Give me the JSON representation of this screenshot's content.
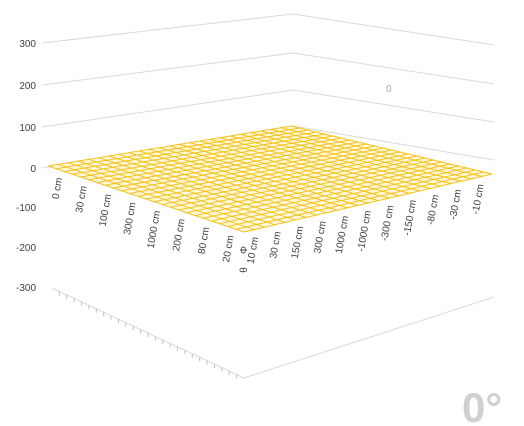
{
  "chart_data": {
    "type": "surface",
    "title": "",
    "zlim": [
      -300,
      300
    ],
    "z_ticks": [
      "300",
      "200",
      "100",
      "0",
      "-100",
      "-200",
      "-300"
    ],
    "x_categories": [
      "0 cm",
      "30 cm",
      "100 cm",
      "300 cm",
      "1000 cm",
      "200 cm",
      "80 cm",
      "20 cm"
    ],
    "y_categories": [
      "10 cm",
      "30 cm",
      "150 cm",
      "300 cm",
      "1000 cm",
      "-1000 cm",
      "-300 cm",
      "-150 cm",
      "-80 cm",
      "-30 cm",
      "-10 cm"
    ],
    "corner_label": "Φ",
    "corner_label_2": "θ",
    "values": "constant 0 over the whole grid",
    "surface_value": 0,
    "series_label": "0",
    "surface_color": "#f5c21a",
    "grid": true,
    "legend": "none"
  },
  "rotation_label": "0°",
  "text_color": "#404040",
  "gridline_color": "#d9d9d9"
}
